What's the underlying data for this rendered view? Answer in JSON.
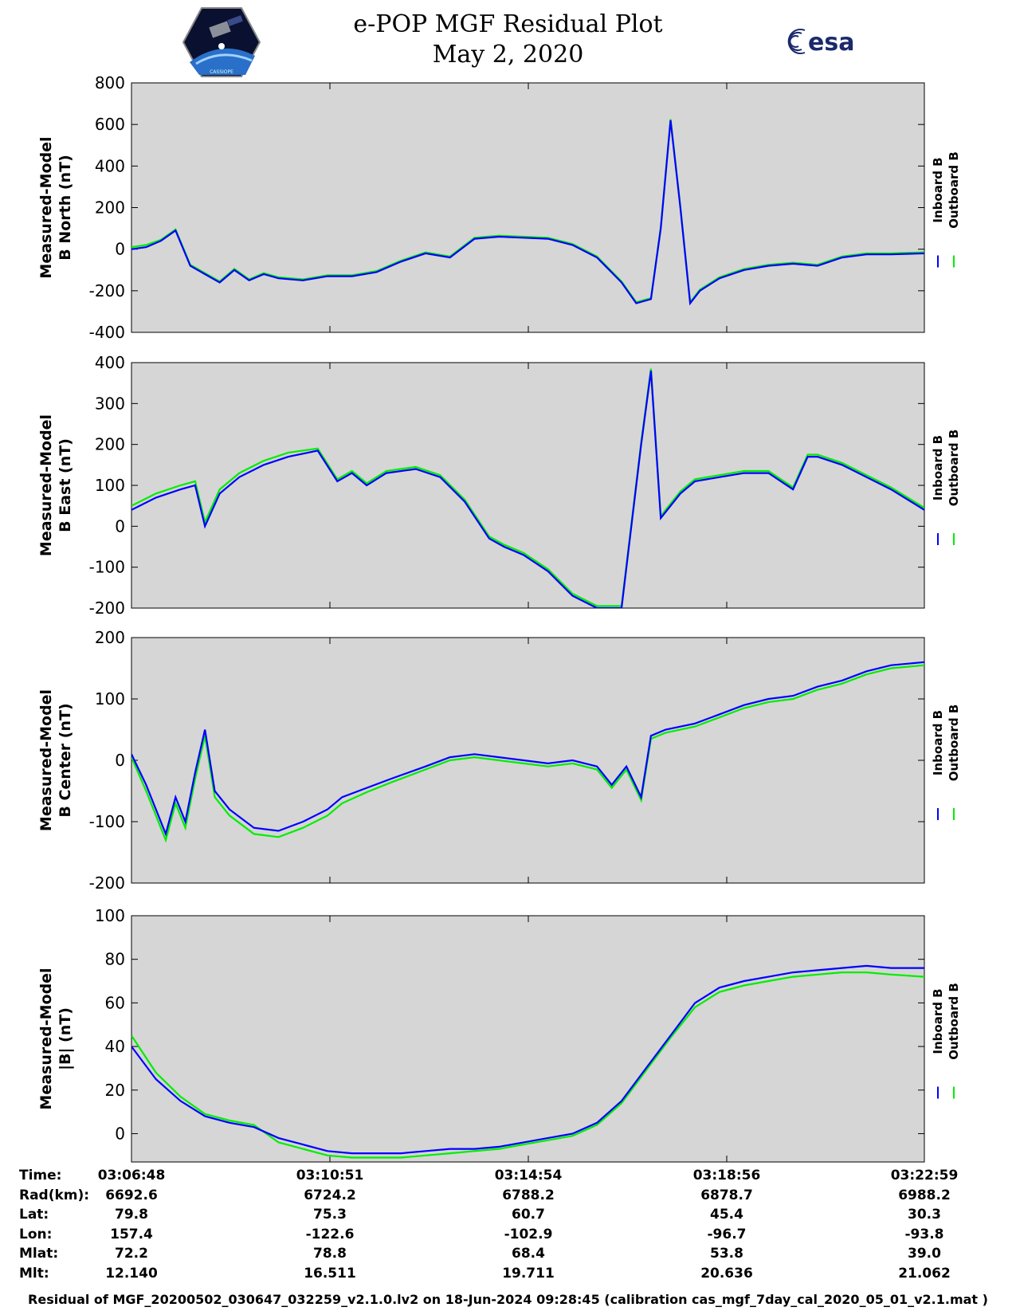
{
  "title": "e-POP MGF Residual Plot",
  "subtitle": "May 2, 2020",
  "logos": {
    "left": "cassiope-mission-logo",
    "right_text": "esa"
  },
  "colors": {
    "inboard": "#0000ff",
    "outboard": "#00ee00",
    "plot_bg": "#d6d6d6"
  },
  "legend": {
    "inboard": "Inboard B",
    "outboard": "Outboard B"
  },
  "chart_data": [
    {
      "type": "line",
      "ylabel_line1": "Measured-Model",
      "ylabel_line2": "B North (nT)",
      "ylim": [
        -400,
        800
      ],
      "yticks": [
        -400,
        -200,
        0,
        200,
        400,
        600,
        800
      ],
      "xlim": [
        0,
        16.18
      ],
      "series": [
        {
          "name": "Inboard B",
          "x": [
            0,
            0.3,
            0.6,
            0.9,
            1.2,
            1.5,
            1.8,
            2.1,
            2.4,
            2.7,
            3.0,
            3.5,
            4.0,
            4.5,
            5.0,
            5.5,
            6.0,
            6.5,
            7.0,
            7.5,
            8.0,
            8.5,
            9.0,
            9.5,
            10.0,
            10.3,
            10.6,
            10.8,
            11.0,
            11.2,
            11.4,
            11.6,
            11.8,
            12.0,
            12.5,
            13.0,
            13.5,
            14.0,
            14.5,
            15.0,
            15.5,
            16.18
          ],
          "y": [
            0,
            10,
            40,
            90,
            -80,
            -120,
            -160,
            -100,
            -150,
            -120,
            -140,
            -150,
            -130,
            -130,
            -110,
            -60,
            -20,
            -40,
            50,
            60,
            55,
            50,
            20,
            -40,
            -160,
            -260,
            -240,
            100,
            620,
            200,
            -260,
            -200,
            -170,
            -140,
            -100,
            -80,
            -70,
            -80,
            -40,
            -25,
            -25,
            -20
          ]
        },
        {
          "name": "Outboard B",
          "x": [
            0,
            0.3,
            0.6,
            0.9,
            1.2,
            1.5,
            1.8,
            2.1,
            2.4,
            2.7,
            3.0,
            3.5,
            4.0,
            4.5,
            5.0,
            5.5,
            6.0,
            6.5,
            7.0,
            7.5,
            8.0,
            8.5,
            9.0,
            9.5,
            10.0,
            10.3,
            10.6,
            10.8,
            11.0,
            11.2,
            11.4,
            11.6,
            11.8,
            12.0,
            12.5,
            13.0,
            13.5,
            14.0,
            14.5,
            15.0,
            15.5,
            16.18
          ],
          "y": [
            10,
            20,
            45,
            95,
            -75,
            -115,
            -155,
            -95,
            -145,
            -115,
            -135,
            -145,
            -125,
            -125,
            -105,
            -55,
            -15,
            -35,
            55,
            65,
            60,
            55,
            25,
            -35,
            -155,
            -255,
            -235,
            105,
            625,
            205,
            -255,
            -195,
            -165,
            -135,
            -95,
            -75,
            -65,
            -75,
            -35,
            -20,
            -20,
            -15
          ]
        }
      ]
    },
    {
      "type": "line",
      "ylabel_line1": "Measured-Model",
      "ylabel_line2": "B East (nT)",
      "ylim": [
        -200,
        400
      ],
      "yticks": [
        -200,
        -100,
        0,
        100,
        200,
        300,
        400
      ],
      "xlim": [
        0,
        16.18
      ],
      "series": [
        {
          "name": "Inboard B",
          "x": [
            0,
            0.5,
            1.0,
            1.3,
            1.5,
            1.8,
            2.2,
            2.7,
            3.2,
            3.8,
            4.2,
            4.5,
            4.8,
            5.2,
            5.8,
            6.3,
            6.8,
            7.3,
            7.6,
            8.0,
            8.5,
            9.0,
            9.5,
            10.0,
            10.2,
            10.4,
            10.6,
            10.8,
            11.0,
            11.2,
            11.5,
            12.0,
            12.5,
            13.0,
            13.5,
            13.8,
            14.0,
            14.5,
            15.0,
            15.5,
            16.18
          ],
          "y": [
            40,
            70,
            90,
            100,
            0,
            80,
            120,
            150,
            170,
            185,
            110,
            130,
            100,
            130,
            140,
            120,
            60,
            -30,
            -50,
            -70,
            -110,
            -170,
            -200,
            -200,
            0,
            200,
            380,
            20,
            50,
            80,
            110,
            120,
            130,
            130,
            90,
            170,
            170,
            150,
            120,
            90,
            40
          ]
        },
        {
          "name": "Outboard B",
          "x": [
            0,
            0.5,
            1.0,
            1.3,
            1.5,
            1.8,
            2.2,
            2.7,
            3.2,
            3.8,
            4.2,
            4.5,
            4.8,
            5.2,
            5.8,
            6.3,
            6.8,
            7.3,
            7.6,
            8.0,
            8.5,
            9.0,
            9.5,
            10.0,
            10.2,
            10.4,
            10.6,
            10.8,
            11.0,
            11.2,
            11.5,
            12.0,
            12.5,
            13.0,
            13.5,
            13.8,
            14.0,
            14.5,
            15.0,
            15.5,
            16.18
          ],
          "y": [
            50,
            80,
            100,
            110,
            10,
            90,
            130,
            160,
            180,
            190,
            115,
            135,
            105,
            135,
            145,
            125,
            65,
            -25,
            -45,
            -65,
            -105,
            -165,
            -195,
            -195,
            5,
            205,
            385,
            25,
            55,
            85,
            115,
            125,
            135,
            135,
            95,
            175,
            175,
            155,
            125,
            95,
            45
          ]
        }
      ]
    },
    {
      "type": "line",
      "ylabel_line1": "Measured-Model",
      "ylabel_line2": "B Center (nT)",
      "ylim": [
        -200,
        200
      ],
      "yticks": [
        -200,
        -100,
        0,
        100,
        200
      ],
      "xlim": [
        0,
        16.18
      ],
      "series": [
        {
          "name": "Inboard B",
          "x": [
            0,
            0.3,
            0.7,
            0.9,
            1.1,
            1.3,
            1.5,
            1.7,
            2.0,
            2.5,
            3.0,
            3.5,
            4.0,
            4.3,
            4.8,
            5.3,
            6.0,
            6.5,
            7.0,
            7.5,
            8.0,
            8.5,
            9.0,
            9.5,
            9.8,
            10.1,
            10.4,
            10.6,
            10.9,
            11.5,
            12.0,
            12.5,
            13.0,
            13.5,
            14.0,
            14.5,
            15.0,
            15.5,
            16.18
          ],
          "y": [
            10,
            -40,
            -120,
            -60,
            -100,
            -20,
            50,
            -50,
            -80,
            -110,
            -115,
            -100,
            -80,
            -60,
            -45,
            -30,
            -10,
            5,
            10,
            5,
            0,
            -5,
            0,
            -10,
            -40,
            -10,
            -60,
            40,
            50,
            60,
            75,
            90,
            100,
            105,
            120,
            130,
            145,
            155,
            160
          ]
        },
        {
          "name": "Outboard B",
          "x": [
            0,
            0.3,
            0.7,
            0.9,
            1.1,
            1.3,
            1.5,
            1.7,
            2.0,
            2.5,
            3.0,
            3.5,
            4.0,
            4.3,
            4.8,
            5.3,
            6.0,
            6.5,
            7.0,
            7.5,
            8.0,
            8.5,
            9.0,
            9.5,
            9.8,
            10.1,
            10.4,
            10.6,
            10.9,
            11.5,
            12.0,
            12.5,
            13.0,
            13.5,
            14.0,
            14.5,
            15.0,
            15.5,
            16.18
          ],
          "y": [
            5,
            -50,
            -130,
            -70,
            -110,
            -30,
            40,
            -60,
            -90,
            -120,
            -125,
            -110,
            -90,
            -70,
            -52,
            -36,
            -15,
            0,
            5,
            0,
            -5,
            -10,
            -5,
            -15,
            -45,
            -15,
            -65,
            35,
            45,
            55,
            70,
            85,
            95,
            100,
            115,
            125,
            140,
            150,
            155
          ]
        }
      ]
    },
    {
      "type": "line",
      "ylabel_line1": "Measured-Model",
      "ylabel_line2": "|B| (nT)",
      "ylim": [
        -13,
        100
      ],
      "yticks": [
        0,
        20,
        40,
        60,
        80,
        100
      ],
      "xlim": [
        0,
        16.18
      ],
      "series": [
        {
          "name": "Inboard B",
          "x": [
            0,
            0.5,
            1.0,
            1.5,
            2.0,
            2.5,
            3.0,
            3.5,
            4.0,
            4.5,
            5.0,
            5.5,
            6.0,
            6.5,
            7.0,
            7.5,
            8.0,
            8.5,
            9.0,
            9.5,
            10.0,
            10.5,
            11.0,
            11.5,
            12.0,
            12.5,
            13.0,
            13.5,
            14.0,
            14.5,
            15.0,
            15.5,
            16.18
          ],
          "y": [
            40,
            25,
            15,
            8,
            5,
            3,
            -2,
            -5,
            -8,
            -9,
            -9,
            -9,
            -8,
            -7,
            -7,
            -6,
            -4,
            -2,
            0,
            5,
            15,
            30,
            45,
            60,
            67,
            70,
            72,
            74,
            75,
            76,
            77,
            76,
            76
          ]
        },
        {
          "name": "Outboard B",
          "x": [
            0,
            0.5,
            1.0,
            1.5,
            2.0,
            2.5,
            3.0,
            3.5,
            4.0,
            4.5,
            5.0,
            5.5,
            6.0,
            6.5,
            7.0,
            7.5,
            8.0,
            8.5,
            9.0,
            9.5,
            10.0,
            10.5,
            11.0,
            11.5,
            12.0,
            12.5,
            13.0,
            13.5,
            14.0,
            14.5,
            15.0,
            15.5,
            16.18
          ],
          "y": [
            45,
            28,
            17,
            9,
            6,
            4,
            -4,
            -7,
            -10,
            -11,
            -11,
            -11,
            -10,
            -9,
            -8,
            -7,
            -5,
            -3,
            -1,
            4,
            14,
            29,
            44,
            58,
            65,
            68,
            70,
            72,
            73,
            74,
            74,
            73,
            72
          ]
        }
      ]
    }
  ],
  "info_table": {
    "rows": [
      {
        "label": "Time:",
        "values": [
          "03:06:48",
          "03:10:51",
          "03:14:54",
          "03:18:56",
          "03:22:59"
        ]
      },
      {
        "label": "Rad(km):",
        "values": [
          "6692.6",
          "6724.2",
          "6788.2",
          "6878.7",
          "6988.2"
        ]
      },
      {
        "label": "Lat:",
        "values": [
          "79.8",
          "75.3",
          "60.7",
          "45.4",
          "30.3"
        ]
      },
      {
        "label": "Lon:",
        "values": [
          "157.4",
          "-122.6",
          "-102.9",
          "-96.7",
          "-93.8"
        ]
      },
      {
        "label": "Mlat:",
        "values": [
          "72.2",
          "78.8",
          "68.4",
          "53.8",
          "39.0"
        ]
      },
      {
        "label": "Mlt:",
        "values": [
          "12.140",
          "16.511",
          "19.711",
          "20.636",
          "21.062"
        ]
      }
    ]
  },
  "footer": "Residual of MGF_20200502_030647_032259_v2.1.0.lv2 on 18-Jun-2024 09:28:45 (calibration cas_mgf_7day_cal_2020_05_01_v2.1.mat )"
}
